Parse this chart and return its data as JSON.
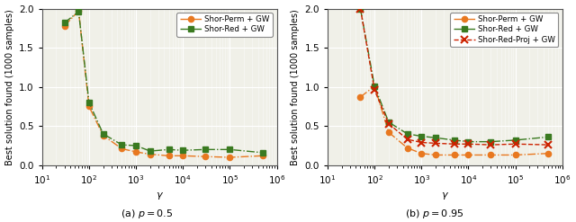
{
  "left_plot": {
    "title": "(a) $p=0.5$",
    "xlabel": "$\\gamma$",
    "ylabel": "Best solution found (1000 samples)",
    "xlim": [
      15,
      1000000
    ],
    "ylim": [
      0.0,
      2.0
    ],
    "yticks": [
      0.0,
      0.5,
      1.0,
      1.5,
      2.0
    ],
    "series": [
      {
        "label": "Shor-Perm + GW",
        "color": "#E87820",
        "marker": "o",
        "linestyle": "-.",
        "x": [
          30,
          60,
          100,
          200,
          500,
          1000,
          2000,
          5000,
          10000,
          30000,
          100000,
          500000
        ],
        "y": [
          1.78,
          1.97,
          0.75,
          0.38,
          0.21,
          0.17,
          0.14,
          0.12,
          0.12,
          0.11,
          0.1,
          0.12
        ]
      },
      {
        "label": "Shor-Red + GW",
        "color": "#3A7A20",
        "marker": "s",
        "linestyle": "-.",
        "x": [
          30,
          60,
          100,
          200,
          500,
          1000,
          2000,
          5000,
          10000,
          30000,
          100000,
          500000
        ],
        "y": [
          1.82,
          1.96,
          0.8,
          0.4,
          0.26,
          0.25,
          0.18,
          0.2,
          0.19,
          0.2,
          0.2,
          0.16
        ]
      }
    ]
  },
  "right_plot": {
    "title": "(b) $p=0.95$",
    "xlabel": "$\\gamma$",
    "ylabel": "Best solution found (1000 samples)",
    "xlim": [
      15,
      1000000
    ],
    "ylim": [
      0.0,
      2.0
    ],
    "yticks": [
      0.0,
      0.5,
      1.0,
      1.5,
      2.0
    ],
    "series": [
      {
        "label": "Shor-Perm + GW",
        "color": "#E87820",
        "marker": "o",
        "linestyle": "-.",
        "x": [
          50,
          100,
          200,
          500,
          1000,
          2000,
          5000,
          10000,
          30000,
          100000,
          500000
        ],
        "y": [
          0.87,
          1.01,
          0.42,
          0.22,
          0.15,
          0.13,
          0.13,
          0.13,
          0.13,
          0.13,
          0.15
        ]
      },
      {
        "label": "Shor-Red + GW",
        "color": "#3A7A20",
        "marker": "s",
        "linestyle": "-.",
        "x": [
          50,
          100,
          200,
          500,
          1000,
          2000,
          5000,
          10000,
          30000,
          100000,
          500000
        ],
        "y": [
          2.0,
          1.01,
          0.55,
          0.4,
          0.37,
          0.35,
          0.32,
          0.3,
          0.3,
          0.32,
          0.36
        ]
      },
      {
        "label": "Shor-Red-Proj + GW",
        "color": "#CC2200",
        "marker": "x",
        "linestyle": "--",
        "x": [
          50,
          100,
          200,
          500,
          1000,
          2000,
          5000,
          10000,
          30000,
          100000,
          500000
        ],
        "y": [
          2.0,
          0.96,
          0.53,
          0.33,
          0.29,
          0.28,
          0.27,
          0.27,
          0.26,
          0.27,
          0.26
        ]
      }
    ]
  },
  "fig_width": 6.4,
  "fig_height": 2.47,
  "dpi": 100,
  "bg_color": "#f0f0e8",
  "grid_color": "#ffffff",
  "outer_bg": "#ffffff"
}
